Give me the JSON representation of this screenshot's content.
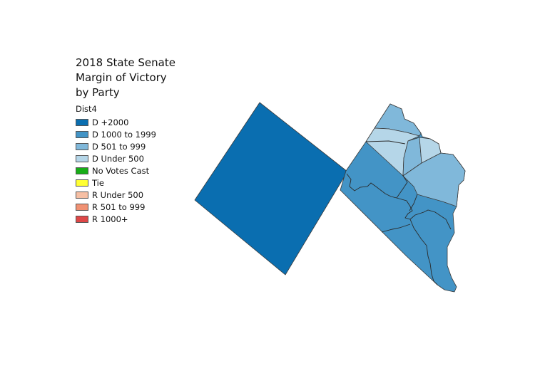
{
  "title": [
    "2018 State Senate",
    "Margin of Victory",
    "by Party"
  ],
  "legend": {
    "field": "Dist4",
    "items": [
      {
        "label": "D +2000",
        "color": "#0a6eb0"
      },
      {
        "label": "D 1000 to 1999",
        "color": "#4394c6"
      },
      {
        "label": "D 501 to 999",
        "color": "#80b8da"
      },
      {
        "label": "D Under 500",
        "color": "#b5d6e8"
      },
      {
        "label": "No Votes Cast",
        "color": "#17ad17"
      },
      {
        "label": "Tie",
        "color": "#ffff33"
      },
      {
        "label": "R Under 500",
        "color": "#f6bfa4"
      },
      {
        "label": "R 501 to 999",
        "color": "#f09173"
      },
      {
        "label": "R 1000+",
        "color": "#de4747"
      }
    ]
  }
}
